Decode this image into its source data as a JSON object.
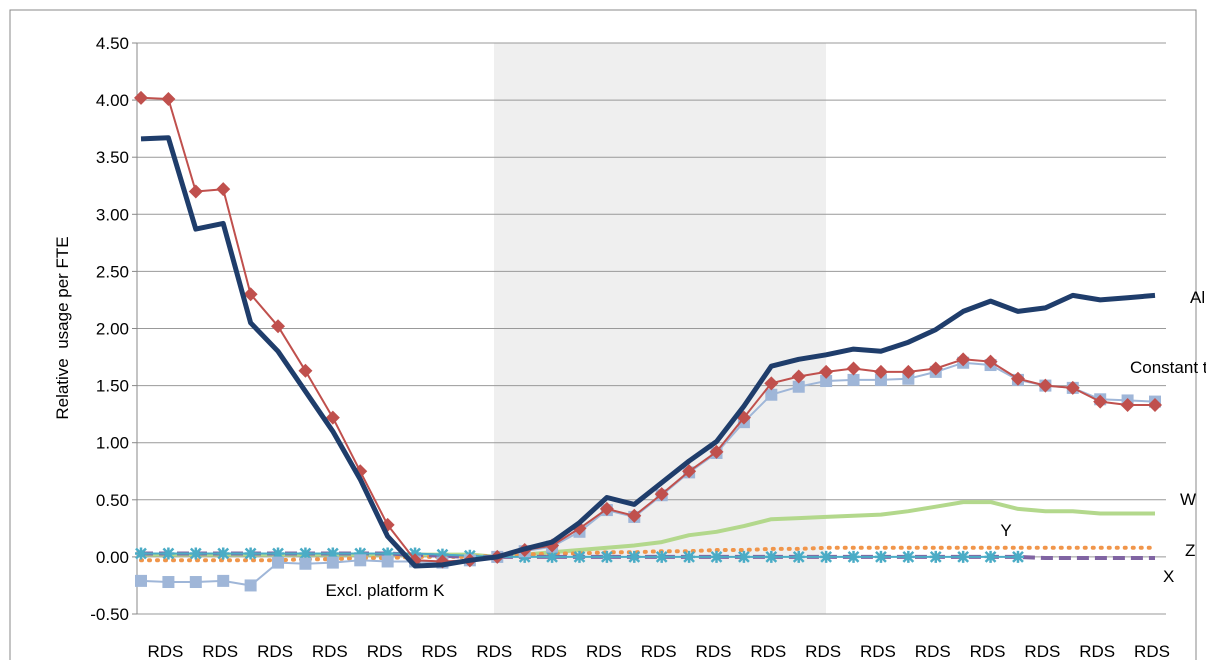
{
  "chart_data": {
    "type": "line",
    "y_label": "Relative  usage per FTE",
    "categories": [
      null,
      "RDS",
      null,
      "RDS",
      null,
      "RDS",
      null,
      "RDS",
      null,
      "RDS",
      null,
      "RDS",
      null,
      "RDS",
      null,
      "RDS",
      null,
      "RDS",
      null,
      "RDS",
      null,
      "RDS",
      null,
      "RDS",
      null,
      "RDS",
      null,
      "RDS",
      null,
      "RDS",
      null,
      "RDS",
      null,
      "RDS",
      null,
      "RDS",
      null,
      "RDS"
    ],
    "ylim": [
      -0.5,
      4.5
    ],
    "yticks": [
      {
        "value": -0.5,
        "label": "-0.50"
      },
      {
        "value": 0,
        "label": "0.00"
      },
      {
        "value": 0.5,
        "label": "0.50"
      },
      {
        "value": 1,
        "label": "1.00"
      },
      {
        "value": 1.5,
        "label": "1.50"
      },
      {
        "value": 2,
        "label": "2.00"
      },
      {
        "value": 2.5,
        "label": "2.50"
      },
      {
        "value": 3,
        "label": "3.00"
      },
      {
        "value": 3.5,
        "label": "3.50"
      },
      {
        "value": 4,
        "label": "4.00"
      },
      {
        "value": 4.5,
        "label": "4.50"
      }
    ],
    "grid": true,
    "series": [
      {
        "name": "W",
        "color": "#b3d88c",
        "marker": "none",
        "dash": "solid",
        "values": [
          0.02,
          0.02,
          0.02,
          0.02,
          0.02,
          0.02,
          0.02,
          0.02,
          0.02,
          0.02,
          0.02,
          0.02,
          0.02,
          0.0,
          0.02,
          0.04,
          0.06,
          0.08,
          0.1,
          0.13,
          0.19,
          0.22,
          0.27,
          0.33,
          0.34,
          0.35,
          0.36,
          0.37,
          0.4,
          0.44,
          0.48,
          0.48,
          0.42,
          0.4,
          0.4,
          0.38,
          0.38,
          0.38
        ]
      },
      {
        "name": "Z",
        "color": "#f0954a",
        "marker": "none",
        "dash": "dotted",
        "values": [
          -0.03,
          -0.03,
          -0.03,
          -0.03,
          -0.03,
          -0.03,
          -0.02,
          -0.02,
          -0.01,
          -0.01,
          0.0,
          0.0,
          0.0,
          0.01,
          0.02,
          0.03,
          0.03,
          0.04,
          0.04,
          0.05,
          0.05,
          0.06,
          0.06,
          0.07,
          0.07,
          0.08,
          0.08,
          0.08,
          0.08,
          0.08,
          0.08,
          0.08,
          0.08,
          0.08,
          0.08,
          0.08,
          0.08,
          0.08
        ]
      },
      {
        "name": "X",
        "color": "#8064a2",
        "marker": "none",
        "dash": "dashed",
        "values": [
          0.03,
          0.03,
          0.03,
          0.03,
          0.03,
          0.03,
          0.03,
          0.03,
          0.03,
          0.03,
          0.02,
          0.01,
          0.0,
          0.0,
          0.0,
          0.0,
          0.0,
          0.0,
          0.0,
          0.0,
          0.0,
          0.0,
          0.0,
          0.0,
          0.0,
          0.0,
          0.0,
          0.0,
          0.0,
          0.0,
          0.0,
          0.0,
          0.0,
          -0.01,
          -0.01,
          -0.01,
          -0.01,
          -0.01
        ]
      },
      {
        "name": "Y",
        "color": "#4bacc6",
        "marker": "asterisk",
        "dash": "solid",
        "values": [
          0.03,
          0.03,
          0.03,
          0.03,
          0.03,
          0.03,
          0.03,
          0.03,
          0.03,
          0.03,
          0.03,
          0.02,
          0.01,
          0.0,
          0.0,
          0.0,
          0.0,
          0.0,
          0.0,
          0.0,
          0.0,
          0.0,
          0.0,
          0.0,
          0.0,
          0.0,
          0.0,
          0.0,
          0.0,
          0.0,
          0.0,
          0.0,
          0.0,
          null,
          null,
          null,
          null,
          null
        ]
      },
      {
        "name": "Excl. platform K",
        "color": "#9fb6d8",
        "marker": "square",
        "dash": "solid",
        "values": [
          -0.21,
          -0.22,
          -0.22,
          -0.21,
          -0.25,
          -0.05,
          -0.06,
          -0.05,
          -0.03,
          -0.04,
          -0.04,
          -0.05,
          -0.03,
          0.0,
          0.05,
          0.09,
          0.22,
          0.41,
          0.35,
          0.54,
          0.74,
          0.91,
          1.18,
          1.42,
          1.49,
          1.54,
          1.55,
          1.55,
          1.56,
          1.62,
          1.7,
          1.68,
          1.55,
          1.5,
          1.48,
          1.38,
          1.37,
          1.36
        ]
      },
      {
        "name": "Constant titles",
        "color": "#c0504d",
        "marker": "diamond",
        "dash": "solid",
        "values": [
          4.02,
          4.01,
          3.2,
          3.22,
          2.3,
          2.02,
          1.63,
          1.22,
          0.75,
          0.28,
          -0.03,
          -0.04,
          -0.03,
          0.0,
          0.06,
          0.1,
          0.25,
          0.42,
          0.36,
          0.55,
          0.75,
          0.92,
          1.22,
          1.52,
          1.58,
          1.62,
          1.65,
          1.62,
          1.62,
          1.65,
          1.73,
          1.71,
          1.56,
          1.5,
          1.48,
          1.36,
          1.33,
          1.33
        ]
      },
      {
        "name": "All",
        "color": "#1f3d6b",
        "marker": "none",
        "dash": "solid",
        "values": [
          3.66,
          3.67,
          2.87,
          2.92,
          2.05,
          1.8,
          1.45,
          1.1,
          0.68,
          0.18,
          -0.08,
          -0.07,
          -0.03,
          0.0,
          0.07,
          0.13,
          0.3,
          0.52,
          0.46,
          0.65,
          0.84,
          1.01,
          1.32,
          1.67,
          1.73,
          1.77,
          1.82,
          1.8,
          1.88,
          1.99,
          2.15,
          2.24,
          2.15,
          2.18,
          2.29,
          2.25,
          2.27,
          2.29
        ]
      }
    ]
  }
}
